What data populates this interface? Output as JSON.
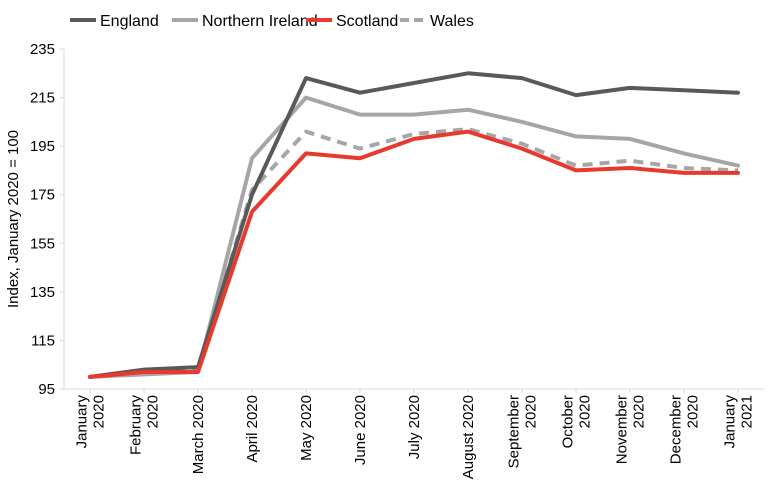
{
  "chart_data": {
    "type": "line",
    "title": "",
    "xlabel": "",
    "ylabel": "Index, January 2020 = 100",
    "ylim": [
      95,
      235
    ],
    "yticks": [
      95,
      115,
      135,
      155,
      175,
      195,
      215,
      235
    ],
    "categories": [
      [
        "January",
        "2020"
      ],
      [
        "February",
        "2020"
      ],
      [
        "March 2020"
      ],
      [
        "April 2020"
      ],
      [
        "May 2020"
      ],
      [
        "June 2020"
      ],
      [
        "July 2020"
      ],
      [
        "August 2020"
      ],
      [
        "September",
        "2020"
      ],
      [
        "October",
        "2020"
      ],
      [
        "November",
        "2020"
      ],
      [
        "December",
        "2020"
      ],
      [
        "January",
        "2021"
      ]
    ],
    "grid": false,
    "legend_position": "top",
    "series": [
      {
        "name": "England",
        "color": "#595959",
        "dashed": false,
        "values": [
          100,
          103,
          104,
          175,
          223,
          217,
          221,
          225,
          223,
          216,
          219,
          218,
          217
        ]
      },
      {
        "name": "Northern Ireland",
        "color": "#a6a6a6",
        "dashed": false,
        "values": [
          100,
          101,
          102,
          190,
          215,
          208,
          208,
          210,
          205,
          199,
          198,
          192,
          187
        ]
      },
      {
        "name": "Scotland",
        "color": "#e8392f",
        "dashed": false,
        "values": [
          100,
          102,
          102,
          168,
          192,
          190,
          198,
          201,
          194,
          185,
          186,
          184,
          184
        ]
      },
      {
        "name": "Wales",
        "color": "#a6a6a6",
        "dashed": true,
        "values": [
          100,
          102,
          103,
          177,
          201,
          194,
          200,
          202,
          196,
          187,
          189,
          186,
          185
        ]
      }
    ]
  }
}
